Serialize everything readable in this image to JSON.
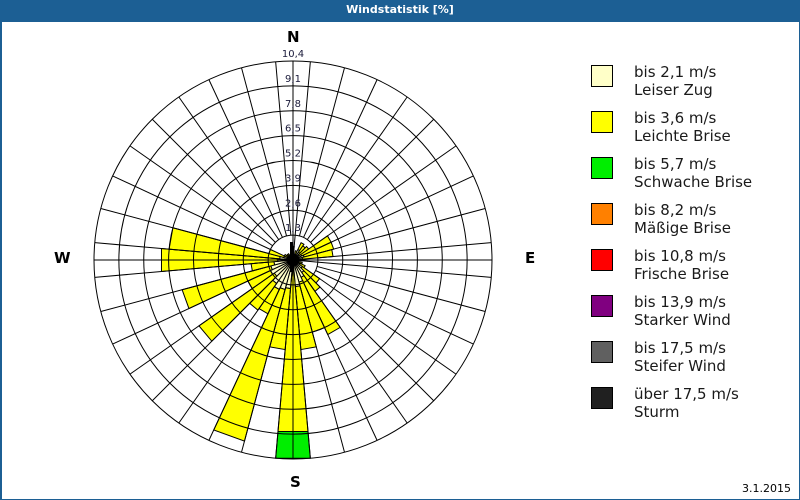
{
  "window": {
    "title": "Windstatistik [%]"
  },
  "compass": {
    "n": "N",
    "e": "E",
    "s": "S",
    "w": "W"
  },
  "footer": {
    "date": "3.1.2015"
  },
  "legend": [
    {
      "range": "bis 2,1 m/s",
      "name": "Leiser Zug",
      "color": "#ffffc8"
    },
    {
      "range": "bis 3,6 m/s",
      "name": "Leichte Brise",
      "color": "#ffff00"
    },
    {
      "range": "bis 5,7 m/s",
      "name": "Schwache Brise",
      "color": "#00ee00"
    },
    {
      "range": "bis 8,2 m/s",
      "name": "Mäßige Brise",
      "color": "#ff8000"
    },
    {
      "range": "bis 10,8 m/s",
      "name": "Frische Brise",
      "color": "#ff0000"
    },
    {
      "range": "bis 13,9 m/s",
      "name": "Starker Wind",
      "color": "#800080"
    },
    {
      "range": "bis 17,5 m/s",
      "name": "Steifer Wind",
      "color": "#606060"
    },
    {
      "range": "über 17,5 m/s",
      "name": "Sturm",
      "color": "#202020"
    }
  ],
  "chart_data": {
    "type": "windrose",
    "title": "Windstatistik [%]",
    "unit": "%",
    "radial_ticks": [
      "1,3",
      "2,6",
      "3,9",
      "5,2",
      "6,5",
      "7,8",
      "9,1",
      "10,4"
    ],
    "radial_max": 10.4,
    "sector_width_deg": 10,
    "directions_deg": [
      0,
      10,
      20,
      30,
      40,
      50,
      60,
      70,
      80,
      90,
      100,
      110,
      120,
      130,
      140,
      150,
      160,
      170,
      180,
      190,
      200,
      210,
      220,
      230,
      240,
      250,
      260,
      270,
      280,
      290,
      300,
      310,
      320,
      330,
      340,
      350
    ],
    "series": [
      {
        "name": "bis 2,1 m/s (Leiser Zug)",
        "values": [
          0.3,
          0.2,
          0.3,
          0.6,
          0.5,
          0.4,
          0.5,
          0.6,
          0.5,
          0.3,
          0.2,
          0.3,
          0.4,
          0.6,
          0.8,
          1.0,
          1.2,
          1.4,
          0.3,
          1.5,
          1.6,
          1.7,
          1.5,
          1.2,
          1.3,
          1.2,
          1.0,
          0.8,
          0.7,
          0.5,
          0.3,
          0.3,
          0.2,
          0.2,
          0.2,
          0.2
        ]
      },
      {
        "name": "bis 3,6 m/s (Leichte Brise)",
        "values": [
          0.4,
          0.1,
          0.2,
          0.4,
          0.4,
          0.6,
          1.7,
          1.6,
          1.6,
          0.2,
          0.1,
          0.2,
          0.3,
          1.1,
          1.2,
          3.3,
          2.7,
          3.3,
          8.7,
          3.2,
          8.2,
          1.4,
          1.7,
          4.8,
          1.3,
          4.8,
          1.2,
          6.1,
          5.8,
          0.8,
          0.2,
          0.1,
          0.2,
          0.1,
          0.1,
          0.2
        ]
      },
      {
        "name": "bis 5,7 m/s (Schwache Brise)",
        "values": [
          0,
          0,
          0,
          0,
          0,
          0,
          0,
          0,
          0,
          0,
          0,
          0,
          0,
          0,
          0,
          0,
          0,
          0,
          1.4,
          0,
          0,
          0,
          0,
          0,
          0,
          0,
          0,
          0,
          0,
          0,
          0,
          0,
          0,
          0,
          0,
          0
        ]
      },
      {
        "name": "bis 8,2 m/s (Mäßige Brise)",
        "values": [
          0,
          0,
          0,
          0,
          0,
          0,
          0,
          0,
          0,
          0,
          0,
          0,
          0,
          0,
          0,
          0,
          0,
          0,
          0,
          0,
          0,
          0,
          0,
          0,
          0,
          0,
          0,
          0,
          0,
          0,
          0,
          0,
          0,
          0,
          0,
          0
        ]
      },
      {
        "name": "bis 10,8 m/s (Frische Brise)",
        "values": [
          0,
          0,
          0,
          0,
          0,
          0,
          0,
          0,
          0,
          0,
          0,
          0,
          0,
          0,
          0,
          0,
          0,
          0,
          0,
          0,
          0,
          0,
          0,
          0,
          0,
          0,
          0,
          0,
          0,
          0,
          0,
          0,
          0,
          0,
          0,
          0
        ]
      },
      {
        "name": "bis 13,9 m/s (Starker Wind)",
        "values": [
          0,
          0,
          0,
          0,
          0,
          0,
          0,
          0,
          0,
          0,
          0,
          0,
          0,
          0,
          0,
          0,
          0,
          0,
          0,
          0,
          0,
          0,
          0,
          0,
          0,
          0,
          0,
          0,
          0,
          0,
          0,
          0,
          0,
          0,
          0,
          0
        ]
      },
      {
        "name": "bis 17,5 m/s (Steifer Wind)",
        "values": [
          0,
          0,
          0,
          0,
          0,
          0,
          0,
          0,
          0,
          0,
          0,
          0,
          0,
          0,
          0,
          0,
          0,
          0,
          0,
          0,
          0,
          0,
          0,
          0,
          0,
          0,
          0,
          0,
          0,
          0,
          0,
          0,
          0,
          0,
          0,
          0
        ]
      },
      {
        "name": "über 17,5 m/s (Sturm)",
        "values": [
          0,
          0,
          0,
          0,
          0,
          0,
          0,
          0,
          0,
          0,
          0,
          0,
          0,
          0,
          0,
          0,
          0,
          0,
          0,
          0,
          0,
          0,
          0,
          0,
          0,
          0,
          0,
          0,
          0,
          0,
          0,
          0,
          0,
          0,
          0,
          0
        ]
      }
    ],
    "grid": true,
    "legend_position": "right"
  }
}
